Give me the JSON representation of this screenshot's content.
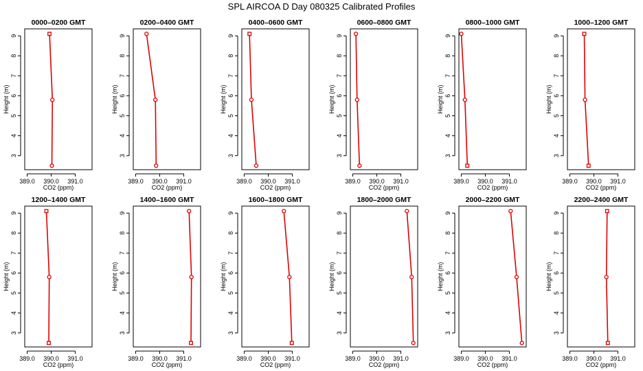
{
  "figure": {
    "title": "SPL AIRCOA D  Day 080325  Calibrated Profiles"
  },
  "chart_data": [
    {
      "type": "line",
      "title": "0000–0200 GMT",
      "xlabel": "CO2 (ppm)",
      "ylabel": "Height (m)",
      "xlim": [
        388.9,
        391.7
      ],
      "ylim": [
        2.3,
        9.35
      ],
      "xticks": [
        389.0,
        390.0,
        391.0
      ],
      "xtick_labels": [
        "389.0",
        "390.0",
        "391.0"
      ],
      "yticks": [
        3,
        4,
        5,
        6,
        7,
        8,
        9
      ],
      "x": [
        389.93,
        390.05,
        390.03
      ],
      "y": [
        9.1,
        5.8,
        2.5
      ],
      "markers": [
        "square",
        "circle",
        "circle"
      ],
      "color": "#dd0000"
    },
    {
      "type": "line",
      "title": "0200–0400 GMT",
      "xlabel": "CO2 (ppm)",
      "ylabel": "Height (m)",
      "xlim": [
        388.9,
        391.7
      ],
      "ylim": [
        2.3,
        9.35
      ],
      "xticks": [
        389.0,
        390.0,
        391.0
      ],
      "xtick_labels": [
        "389.0",
        "390.0",
        "391.0"
      ],
      "yticks": [
        3,
        4,
        5,
        6,
        7,
        8,
        9
      ],
      "x": [
        389.45,
        389.82,
        389.85
      ],
      "y": [
        9.1,
        5.8,
        2.5
      ],
      "markers": [
        "circle",
        "circle",
        "circle"
      ],
      "color": "#dd0000"
    },
    {
      "type": "line",
      "title": "0400–0600 GMT",
      "xlabel": "CO2 (ppm)",
      "ylabel": "Height (m)",
      "xlim": [
        388.9,
        391.7
      ],
      "ylim": [
        2.3,
        9.35
      ],
      "xticks": [
        389.0,
        390.0,
        391.0
      ],
      "xtick_labels": [
        "389.0",
        "390.0",
        "391.0"
      ],
      "yticks": [
        3,
        4,
        5,
        6,
        7,
        8,
        9
      ],
      "x": [
        389.22,
        389.3,
        389.5
      ],
      "y": [
        9.1,
        5.8,
        2.5
      ],
      "markers": [
        "square",
        "circle",
        "circle"
      ],
      "color": "#dd0000"
    },
    {
      "type": "line",
      "title": "0600–0800 GMT",
      "xlabel": "CO2 (ppm)",
      "ylabel": "Height (m)",
      "xlim": [
        388.9,
        391.7
      ],
      "ylim": [
        2.3,
        9.35
      ],
      "xticks": [
        389.0,
        390.0,
        391.0
      ],
      "xtick_labels": [
        "389.0",
        "390.0",
        "391.0"
      ],
      "yticks": [
        3,
        4,
        5,
        6,
        7,
        8,
        9
      ],
      "x": [
        389.13,
        389.18,
        389.28
      ],
      "y": [
        9.1,
        5.8,
        2.5
      ],
      "markers": [
        "circle",
        "circle",
        "circle"
      ],
      "color": "#dd0000"
    },
    {
      "type": "line",
      "title": "0800–1000 GMT",
      "xlabel": "CO2 (ppm)",
      "ylabel": "Height (m)",
      "xlim": [
        388.9,
        391.7
      ],
      "ylim": [
        2.3,
        9.35
      ],
      "xticks": [
        389.0,
        390.0,
        391.0
      ],
      "xtick_labels": [
        "389.0",
        "390.0",
        "391.0"
      ],
      "yticks": [
        3,
        4,
        5,
        6,
        7,
        8,
        9
      ],
      "x": [
        389.0,
        389.15,
        389.25
      ],
      "y": [
        9.1,
        5.8,
        2.5
      ],
      "markers": [
        "circle",
        "circle",
        "square"
      ],
      "color": "#dd0000"
    },
    {
      "type": "line",
      "title": "1000–1200 GMT",
      "xlabel": "CO2 (ppm)",
      "ylabel": "Height (m)",
      "xlim": [
        388.9,
        391.7
      ],
      "ylim": [
        2.3,
        9.35
      ],
      "xticks": [
        389.0,
        390.0,
        391.0
      ],
      "xtick_labels": [
        "389.0",
        "390.0",
        "391.0"
      ],
      "yticks": [
        3,
        4,
        5,
        6,
        7,
        8,
        9
      ],
      "x": [
        389.6,
        389.63,
        389.78
      ],
      "y": [
        9.1,
        5.8,
        2.5
      ],
      "markers": [
        "square",
        "circle",
        "square"
      ],
      "color": "#dd0000"
    },
    {
      "type": "line",
      "title": "1200–1400 GMT",
      "xlabel": "CO2 (ppm)",
      "ylabel": "Height (m)",
      "xlim": [
        388.9,
        391.7
      ],
      "ylim": [
        2.3,
        9.35
      ],
      "xticks": [
        389.0,
        390.0,
        391.0
      ],
      "xtick_labels": [
        "389.0",
        "390.0",
        "391.0"
      ],
      "yticks": [
        3,
        4,
        5,
        6,
        7,
        8,
        9
      ],
      "x": [
        389.8,
        389.92,
        389.9
      ],
      "y": [
        9.1,
        5.8,
        2.5
      ],
      "markers": [
        "square",
        "circle",
        "square"
      ],
      "color": "#dd0000"
    },
    {
      "type": "line",
      "title": "1400–1600 GMT",
      "xlabel": "CO2 (ppm)",
      "ylabel": "Height (m)",
      "xlim": [
        388.9,
        391.7
      ],
      "ylim": [
        2.3,
        9.35
      ],
      "xticks": [
        389.0,
        390.0,
        391.0
      ],
      "xtick_labels": [
        "389.0",
        "390.0",
        "391.0"
      ],
      "yticks": [
        3,
        4,
        5,
        6,
        7,
        8,
        9
      ],
      "x": [
        391.22,
        391.32,
        391.3
      ],
      "y": [
        9.1,
        5.8,
        2.5
      ],
      "markers": [
        "circle",
        "circle",
        "square"
      ],
      "color": "#dd0000"
    },
    {
      "type": "line",
      "title": "1600–1800 GMT",
      "xlabel": "CO2 (ppm)",
      "ylabel": "Height (m)",
      "xlim": [
        388.9,
        391.7
      ],
      "ylim": [
        2.3,
        9.35
      ],
      "xticks": [
        389.0,
        390.0,
        391.0
      ],
      "xtick_labels": [
        "389.0",
        "390.0",
        "391.0"
      ],
      "yticks": [
        3,
        4,
        5,
        6,
        7,
        8,
        9
      ],
      "x": [
        390.65,
        390.88,
        390.98
      ],
      "y": [
        9.1,
        5.8,
        2.5
      ],
      "markers": [
        "circle",
        "circle",
        "square"
      ],
      "color": "#dd0000"
    },
    {
      "type": "line",
      "title": "1800–2000 GMT",
      "xlabel": "CO2 (ppm)",
      "ylabel": "Height (m)",
      "xlim": [
        388.9,
        391.7
      ],
      "ylim": [
        2.3,
        9.35
      ],
      "xticks": [
        389.0,
        390.0,
        391.0
      ],
      "xtick_labels": [
        "389.0",
        "390.0",
        "391.0"
      ],
      "yticks": [
        3,
        4,
        5,
        6,
        7,
        8,
        9
      ],
      "x": [
        391.25,
        391.45,
        391.52
      ],
      "y": [
        9.1,
        5.8,
        2.5
      ],
      "markers": [
        "circle",
        "circle",
        "circle"
      ],
      "color": "#dd0000"
    },
    {
      "type": "line",
      "title": "2000–2200 GMT",
      "xlabel": "CO2 (ppm)",
      "ylabel": "Height (m)",
      "xlim": [
        388.9,
        391.7
      ],
      "ylim": [
        2.3,
        9.35
      ],
      "xticks": [
        389.0,
        390.0,
        391.0
      ],
      "xtick_labels": [
        "389.0",
        "390.0",
        "391.0"
      ],
      "yticks": [
        3,
        4,
        5,
        6,
        7,
        8,
        9
      ],
      "x": [
        391.05,
        391.3,
        391.52
      ],
      "y": [
        9.1,
        5.8,
        2.5
      ],
      "markers": [
        "circle",
        "circle",
        "circle"
      ],
      "color": "#dd0000"
    },
    {
      "type": "line",
      "title": "2200–2400 GMT",
      "xlabel": "CO2 (ppm)",
      "ylabel": "Height (m)",
      "xlim": [
        388.9,
        391.7
      ],
      "ylim": [
        2.3,
        9.35
      ],
      "xticks": [
        389.0,
        390.0,
        391.0
      ],
      "xtick_labels": [
        "389.0",
        "390.0",
        "391.0"
      ],
      "yticks": [
        3,
        4,
        5,
        6,
        7,
        8,
        9
      ],
      "x": [
        390.55,
        390.52,
        390.58
      ],
      "y": [
        9.1,
        5.8,
        2.5
      ],
      "markers": [
        "square",
        "circle",
        "square"
      ],
      "color": "#dd0000"
    }
  ]
}
